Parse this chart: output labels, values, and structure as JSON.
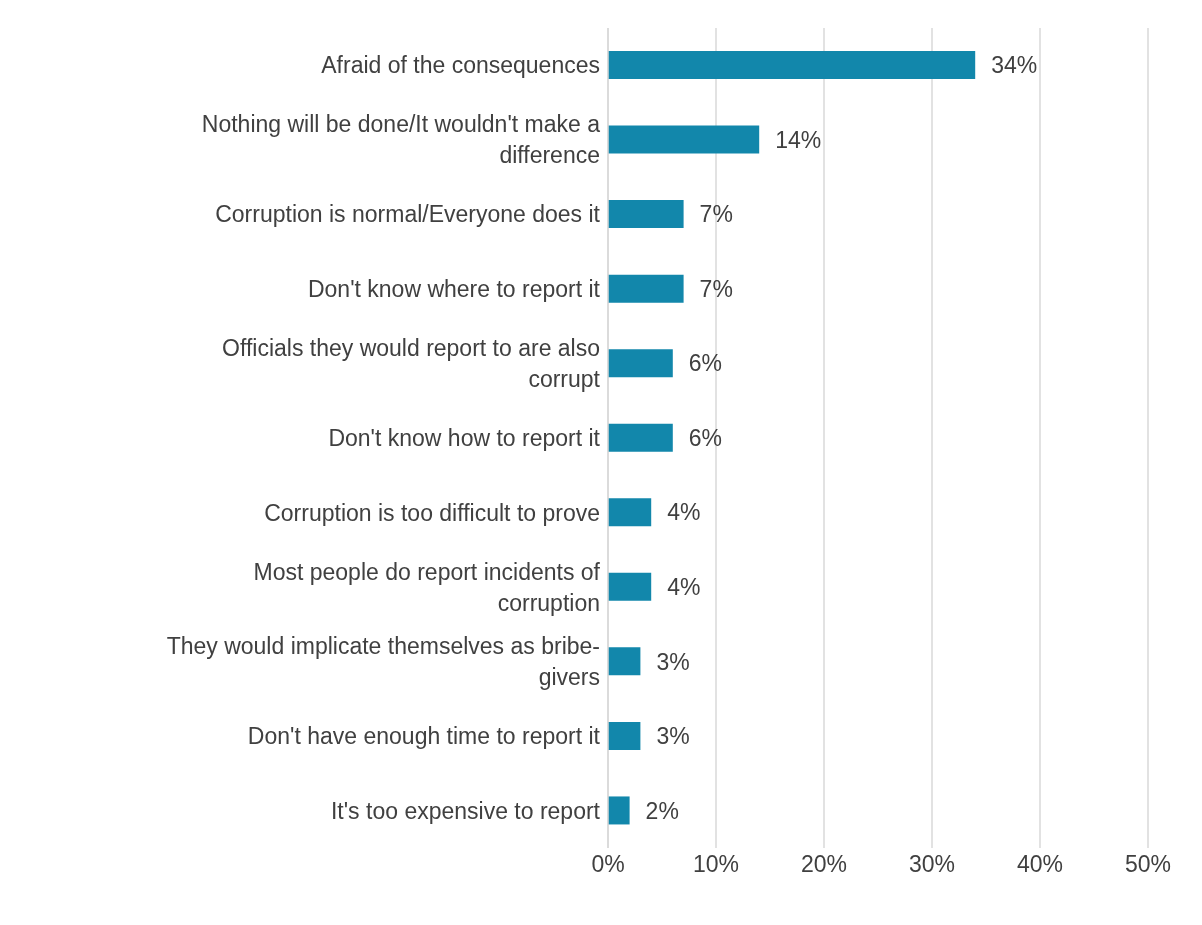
{
  "chart_data": {
    "type": "bar",
    "orientation": "horizontal",
    "categories": [
      "Afraid of the consequences",
      "Nothing will be done/It wouldn't make a difference",
      "Corruption is normal/Everyone does it",
      "Don't know where to report it",
      "Officials they would report to are also corrupt",
      "Don't know how to report it",
      "Corruption is too difficult to prove",
      "Most people do report incidents of corruption",
      "They would implicate themselves as bribe-givers",
      "Don't have enough time to report it",
      "It's too expensive to report"
    ],
    "values": [
      34,
      14,
      7,
      7,
      6,
      6,
      4,
      4,
      3,
      3,
      2
    ],
    "value_labels": [
      "34%",
      "14%",
      "7%",
      "7%",
      "6%",
      "6%",
      "4%",
      "4%",
      "3%",
      "3%",
      "2%"
    ],
    "color": "#1287ab",
    "xlim": [
      0,
      50
    ],
    "xticks": [
      {
        "value": 0,
        "label": "0%"
      },
      {
        "value": 10,
        "label": "10%"
      },
      {
        "value": 20,
        "label": "20%"
      },
      {
        "value": 30,
        "label": "30%"
      },
      {
        "value": 40,
        "label": "40%"
      },
      {
        "value": 50,
        "label": "50%"
      }
    ],
    "grid": "x"
  }
}
